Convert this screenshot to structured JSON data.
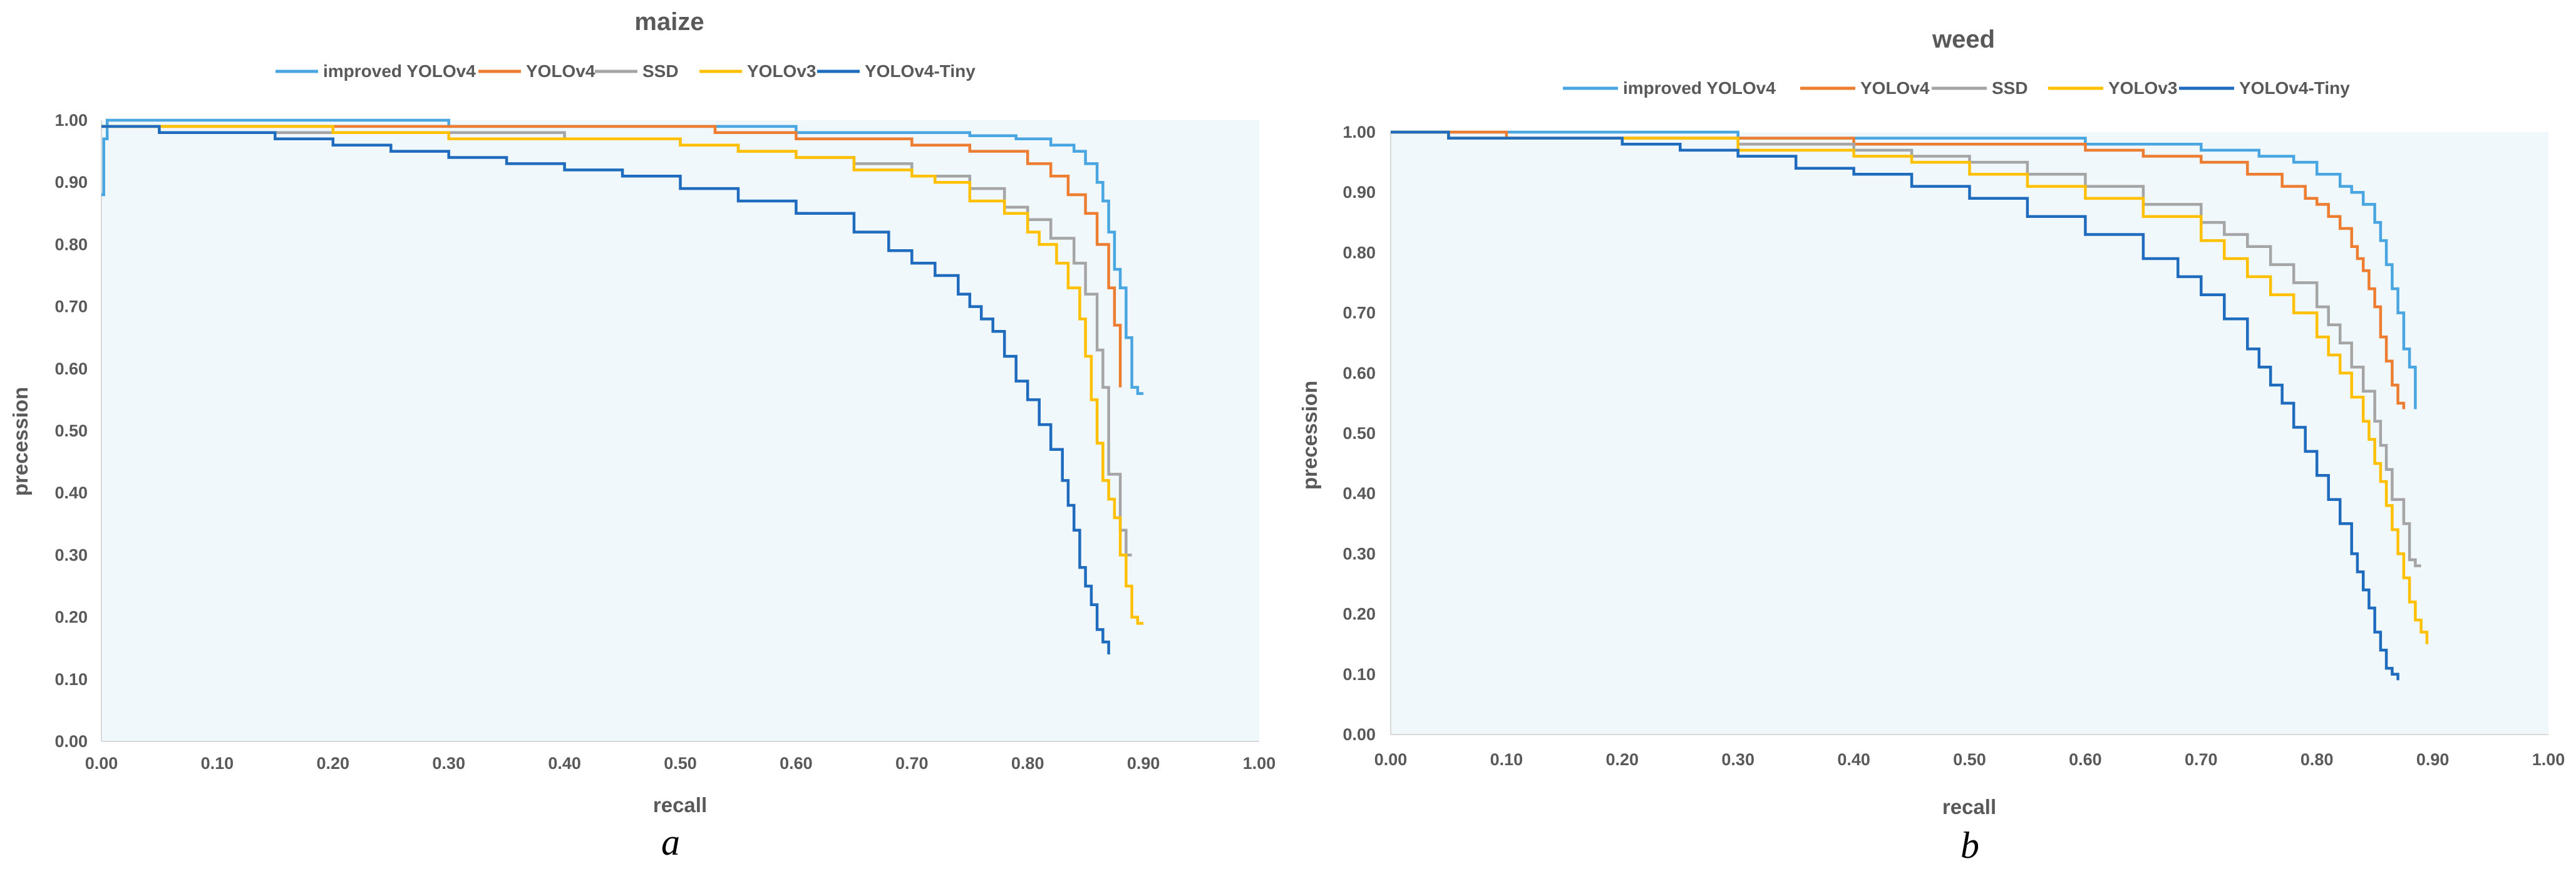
{
  "chart_data": [
    {
      "type": "line",
      "title": "maize",
      "xlabel": "recall",
      "ylabel": "precession",
      "caption": "a",
      "xlim": [
        0,
        1
      ],
      "ylim": [
        0,
        1
      ],
      "xticks": [
        "0.00",
        "0.10",
        "0.20",
        "0.30",
        "0.40",
        "0.50",
        "0.60",
        "0.70",
        "0.80",
        "0.90",
        "1.00"
      ],
      "yticks": [
        "0.00",
        "0.10",
        "0.20",
        "0.30",
        "0.40",
        "0.50",
        "0.60",
        "0.70",
        "0.80",
        "0.90",
        "1.00"
      ],
      "legend": [
        "improved YOLOv4",
        "YOLOv4",
        "SSD",
        "YOLOv3",
        "YOLOv4-Tiny"
      ],
      "series": [
        {
          "name": "improved YOLOv4",
          "color": "#4aa6e0",
          "x": [
            0,
            0.002,
            0.005,
            0.03,
            0.08,
            0.12,
            0.2,
            0.3,
            0.4,
            0.5,
            0.6,
            0.7,
            0.75,
            0.79,
            0.82,
            0.84,
            0.85,
            0.86,
            0.865,
            0.87,
            0.875,
            0.88,
            0.885,
            0.89,
            0.895,
            0.9
          ],
          "y": [
            0.88,
            0.97,
            1.0,
            1.0,
            1.0,
            1.0,
            1.0,
            0.99,
            0.99,
            0.99,
            0.98,
            0.98,
            0.975,
            0.97,
            0.96,
            0.95,
            0.93,
            0.9,
            0.87,
            0.82,
            0.76,
            0.73,
            0.65,
            0.57,
            0.56,
            0.56
          ]
        },
        {
          "name": "YOLOv4",
          "color": "#ed7d31",
          "x": [
            0,
            0.01,
            0.1,
            0.2,
            0.3,
            0.4,
            0.53,
            0.6,
            0.7,
            0.75,
            0.8,
            0.82,
            0.835,
            0.85,
            0.86,
            0.87,
            0.875,
            0.88
          ],
          "y": [
            0.99,
            0.99,
            0.99,
            0.99,
            0.99,
            0.99,
            0.98,
            0.97,
            0.96,
            0.95,
            0.93,
            0.91,
            0.88,
            0.85,
            0.8,
            0.73,
            0.67,
            0.57
          ]
        },
        {
          "name": "SSD",
          "color": "#a5a5a5",
          "x": [
            0,
            0.01,
            0.05,
            0.1,
            0.2,
            0.3,
            0.4,
            0.5,
            0.55,
            0.6,
            0.65,
            0.7,
            0.75,
            0.78,
            0.8,
            0.82,
            0.84,
            0.85,
            0.86,
            0.865,
            0.87,
            0.88,
            0.885,
            0.89
          ],
          "y": [
            0.99,
            0.99,
            0.98,
            0.98,
            0.98,
            0.98,
            0.97,
            0.96,
            0.95,
            0.94,
            0.93,
            0.91,
            0.89,
            0.86,
            0.84,
            0.81,
            0.77,
            0.72,
            0.63,
            0.57,
            0.43,
            0.34,
            0.3,
            0.3
          ]
        },
        {
          "name": "YOLOv3",
          "color": "#ffc000",
          "x": [
            0,
            0.05,
            0.1,
            0.2,
            0.3,
            0.4,
            0.5,
            0.55,
            0.6,
            0.65,
            0.7,
            0.72,
            0.75,
            0.78,
            0.8,
            0.81,
            0.825,
            0.835,
            0.845,
            0.85,
            0.855,
            0.86,
            0.865,
            0.87,
            0.875,
            0.88,
            0.885,
            0.89,
            0.895,
            0.9
          ],
          "y": [
            0.99,
            0.99,
            0.99,
            0.98,
            0.97,
            0.97,
            0.96,
            0.95,
            0.94,
            0.92,
            0.91,
            0.9,
            0.87,
            0.85,
            0.82,
            0.8,
            0.77,
            0.73,
            0.68,
            0.62,
            0.55,
            0.48,
            0.42,
            0.39,
            0.36,
            0.3,
            0.25,
            0.2,
            0.19,
            0.19
          ]
        },
        {
          "name": "YOLOv4-Tiny",
          "color": "#1f6bbd",
          "x": [
            0,
            0.02,
            0.05,
            0.1,
            0.15,
            0.2,
            0.25,
            0.3,
            0.35,
            0.4,
            0.45,
            0.5,
            0.55,
            0.6,
            0.65,
            0.68,
            0.7,
            0.72,
            0.74,
            0.75,
            0.76,
            0.77,
            0.78,
            0.79,
            0.8,
            0.81,
            0.82,
            0.83,
            0.835,
            0.84,
            0.845,
            0.85,
            0.855,
            0.86,
            0.865,
            0.87
          ],
          "y": [
            0.99,
            0.99,
            0.98,
            0.98,
            0.97,
            0.96,
            0.95,
            0.94,
            0.93,
            0.92,
            0.91,
            0.89,
            0.87,
            0.85,
            0.82,
            0.79,
            0.77,
            0.75,
            0.72,
            0.7,
            0.68,
            0.66,
            0.62,
            0.58,
            0.55,
            0.51,
            0.47,
            0.42,
            0.38,
            0.34,
            0.28,
            0.25,
            0.22,
            0.18,
            0.16,
            0.14
          ]
        }
      ]
    },
    {
      "type": "line",
      "title": "weed",
      "xlabel": "recall",
      "ylabel": "precession",
      "caption": "b",
      "xlim": [
        0,
        1
      ],
      "ylim": [
        0,
        1
      ],
      "xticks": [
        "0.00",
        "0.10",
        "0.20",
        "0.30",
        "0.40",
        "0.50",
        "0.60",
        "0.70",
        "0.80",
        "0.90",
        "1.00"
      ],
      "yticks": [
        "0.00",
        "0.10",
        "0.20",
        "0.30",
        "0.40",
        "0.50",
        "0.60",
        "0.70",
        "0.80",
        "0.90",
        "1.00"
      ],
      "legend": [
        "improved YOLOv4",
        "YOLOv4",
        "SSD",
        "YOLOv3",
        "YOLOv4-Tiny"
      ],
      "series": [
        {
          "name": "improved YOLOv4",
          "color": "#4aa6e0",
          "x": [
            0,
            0.05,
            0.1,
            0.2,
            0.3,
            0.4,
            0.5,
            0.6,
            0.7,
            0.75,
            0.78,
            0.8,
            0.82,
            0.83,
            0.84,
            0.85,
            0.855,
            0.86,
            0.865,
            0.87,
            0.875,
            0.88,
            0.885
          ],
          "y": [
            1.0,
            1.0,
            1.0,
            1.0,
            0.99,
            0.99,
            0.99,
            0.98,
            0.97,
            0.96,
            0.95,
            0.93,
            0.91,
            0.9,
            0.88,
            0.85,
            0.82,
            0.78,
            0.74,
            0.7,
            0.64,
            0.61,
            0.54
          ]
        },
        {
          "name": "YOLOv4",
          "color": "#ed7d31",
          "x": [
            0,
            0.05,
            0.1,
            0.2,
            0.3,
            0.4,
            0.5,
            0.55,
            0.6,
            0.65,
            0.7,
            0.74,
            0.77,
            0.79,
            0.8,
            0.81,
            0.82,
            0.83,
            0.835,
            0.84,
            0.845,
            0.85,
            0.855,
            0.86,
            0.865,
            0.87,
            0.875
          ],
          "y": [
            1.0,
            1.0,
            0.99,
            0.99,
            0.99,
            0.98,
            0.98,
            0.98,
            0.97,
            0.96,
            0.95,
            0.93,
            0.91,
            0.89,
            0.88,
            0.86,
            0.84,
            0.81,
            0.79,
            0.77,
            0.74,
            0.71,
            0.66,
            0.62,
            0.58,
            0.55,
            0.54
          ]
        },
        {
          "name": "SSD",
          "color": "#a5a5a5",
          "x": [
            0,
            0.05,
            0.1,
            0.2,
            0.3,
            0.4,
            0.45,
            0.5,
            0.55,
            0.6,
            0.65,
            0.7,
            0.72,
            0.74,
            0.76,
            0.78,
            0.8,
            0.81,
            0.82,
            0.83,
            0.84,
            0.85,
            0.855,
            0.86,
            0.865,
            0.87,
            0.875,
            0.88,
            0.885,
            0.89
          ],
          "y": [
            1.0,
            0.99,
            0.99,
            0.99,
            0.98,
            0.97,
            0.96,
            0.95,
            0.93,
            0.91,
            0.88,
            0.85,
            0.83,
            0.81,
            0.78,
            0.75,
            0.71,
            0.68,
            0.65,
            0.61,
            0.57,
            0.52,
            0.48,
            0.44,
            0.39,
            0.39,
            0.35,
            0.29,
            0.28,
            0.28
          ]
        },
        {
          "name": "YOLOv3",
          "color": "#ffc000",
          "x": [
            0,
            0.05,
            0.1,
            0.2,
            0.3,
            0.4,
            0.45,
            0.5,
            0.55,
            0.6,
            0.65,
            0.7,
            0.72,
            0.74,
            0.76,
            0.78,
            0.8,
            0.81,
            0.82,
            0.83,
            0.84,
            0.845,
            0.85,
            0.855,
            0.86,
            0.865,
            0.87,
            0.875,
            0.88,
            0.885,
            0.89,
            0.895
          ],
          "y": [
            1.0,
            0.99,
            0.99,
            0.99,
            0.97,
            0.96,
            0.95,
            0.93,
            0.91,
            0.89,
            0.86,
            0.82,
            0.79,
            0.76,
            0.73,
            0.7,
            0.66,
            0.63,
            0.6,
            0.56,
            0.52,
            0.49,
            0.45,
            0.42,
            0.38,
            0.34,
            0.3,
            0.26,
            0.22,
            0.19,
            0.17,
            0.15
          ]
        },
        {
          "name": "YOLOv4-Tiny",
          "color": "#1f6bbd",
          "x": [
            0,
            0.05,
            0.1,
            0.15,
            0.2,
            0.25,
            0.3,
            0.35,
            0.4,
            0.45,
            0.5,
            0.55,
            0.6,
            0.65,
            0.68,
            0.7,
            0.72,
            0.74,
            0.75,
            0.76,
            0.77,
            0.78,
            0.79,
            0.8,
            0.81,
            0.82,
            0.83,
            0.835,
            0.84,
            0.845,
            0.85,
            0.855,
            0.86,
            0.865,
            0.87
          ],
          "y": [
            1.0,
            0.99,
            0.99,
            0.99,
            0.98,
            0.97,
            0.96,
            0.94,
            0.93,
            0.91,
            0.89,
            0.86,
            0.83,
            0.79,
            0.76,
            0.73,
            0.69,
            0.64,
            0.61,
            0.58,
            0.55,
            0.51,
            0.47,
            0.43,
            0.39,
            0.35,
            0.3,
            0.27,
            0.24,
            0.21,
            0.17,
            0.14,
            0.11,
            0.1,
            0.09
          ]
        }
      ]
    }
  ]
}
